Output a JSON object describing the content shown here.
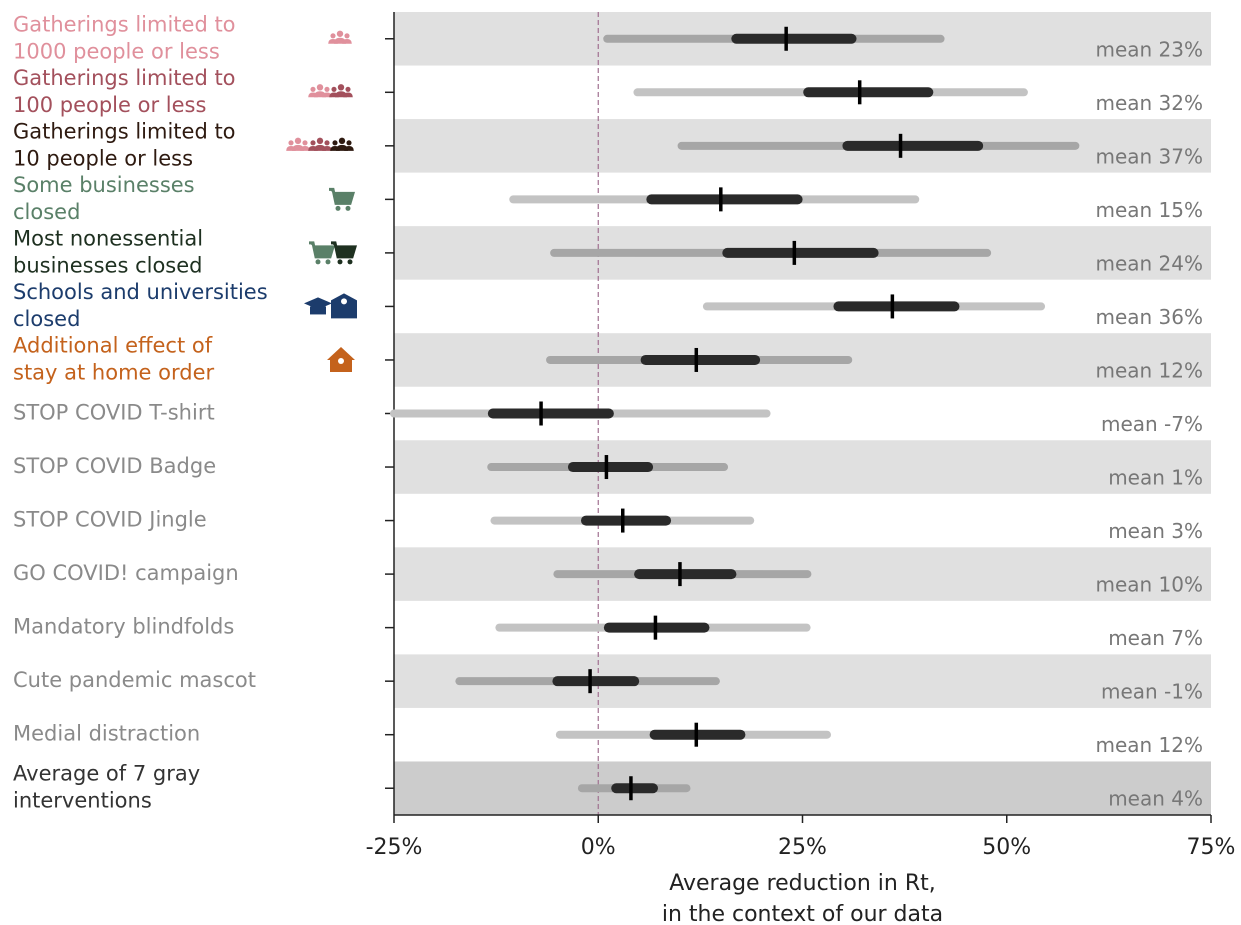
{
  "chart_data": {
    "type": "interval",
    "categories": [
      [
        "Gatherings limited to",
        "1000 people or less"
      ],
      [
        "Gatherings limited to",
        "100 people or less"
      ],
      [
        "Gatherings limited to",
        "10 people or less"
      ],
      [
        "Some businesses",
        "closed"
      ],
      [
        "Most nonessential",
        "businesses closed"
      ],
      [
        "Schools and universities",
        "closed"
      ],
      [
        "Additional effect of",
        "stay at home order"
      ],
      [
        "STOP COVID T-shirt"
      ],
      [
        "STOP COVID Badge"
      ],
      [
        "STOP COVID Jingle"
      ],
      [
        "GO COVID! campaign"
      ],
      [
        "Mandatory blindfolds"
      ],
      [
        "Cute pandemic mascot"
      ],
      [
        "Medial distraction"
      ],
      [
        "Average of 7 gray",
        "interventions"
      ]
    ],
    "label_colors": [
      "#e0909c",
      "#a3505c",
      "#2e1a10",
      "#5a8068",
      "#1e3020",
      "#1c3c6c",
      "#c4621c",
      "#8a8a8a",
      "#8a8a8a",
      "#8a8a8a",
      "#8a8a8a",
      "#8a8a8a",
      "#8a8a8a",
      "#8a8a8a",
      "#333333"
    ],
    "values": [
      23,
      32,
      37,
      15,
      24,
      36,
      12,
      -7,
      1,
      3,
      10,
      7,
      -1,
      12,
      4
    ],
    "value_labels": [
      "mean 23%",
      "mean 32%",
      "mean 37%",
      "mean 15%",
      "mean 24%",
      "mean 36%",
      "mean 12%",
      "mean -7%",
      "mean 1%",
      "mean 3%",
      "mean 10%",
      "mean 7%",
      "mean -1%",
      "mean 12%",
      "mean 4%"
    ],
    "inner_low": [
      16.9,
      25.7,
      30.5,
      6.5,
      15.8,
      29.4,
      5.8,
      -12.9,
      -3.1,
      -1.5,
      5.0,
      1.3,
      -5.0,
      6.9,
      2.2
    ],
    "inner_high": [
      31.0,
      40.4,
      46.5,
      24.4,
      33.7,
      43.6,
      19.2,
      1.3,
      6.1,
      8.3,
      16.3,
      13.0,
      4.4,
      17.4,
      6.7
    ],
    "outer_low": [
      1.1,
      4.8,
      10.2,
      -10.4,
      -5.4,
      13.3,
      -5.9,
      -25,
      -13.1,
      -12.7,
      -5.0,
      -12.1,
      -17.0,
      -4.7,
      -2.0
    ],
    "outer_high": [
      41.9,
      52.1,
      58.4,
      38.8,
      47.6,
      54.2,
      30.6,
      20.6,
      15.4,
      18.6,
      25.6,
      25.5,
      14.4,
      28.0,
      10.8
    ],
    "xlim": [
      -25,
      75
    ],
    "xticks": [
      {
        "value": -25,
        "label": "-25%"
      },
      {
        "value": 0,
        "label": "0%"
      },
      {
        "value": 25,
        "label": "25%"
      },
      {
        "value": 50,
        "label": "50%"
      },
      {
        "value": 75,
        "label": "75%"
      }
    ],
    "x_label": [
      "Average reduction in Rt,",
      "in the context of our data"
    ],
    "zero_line_color": "#a07090"
  }
}
